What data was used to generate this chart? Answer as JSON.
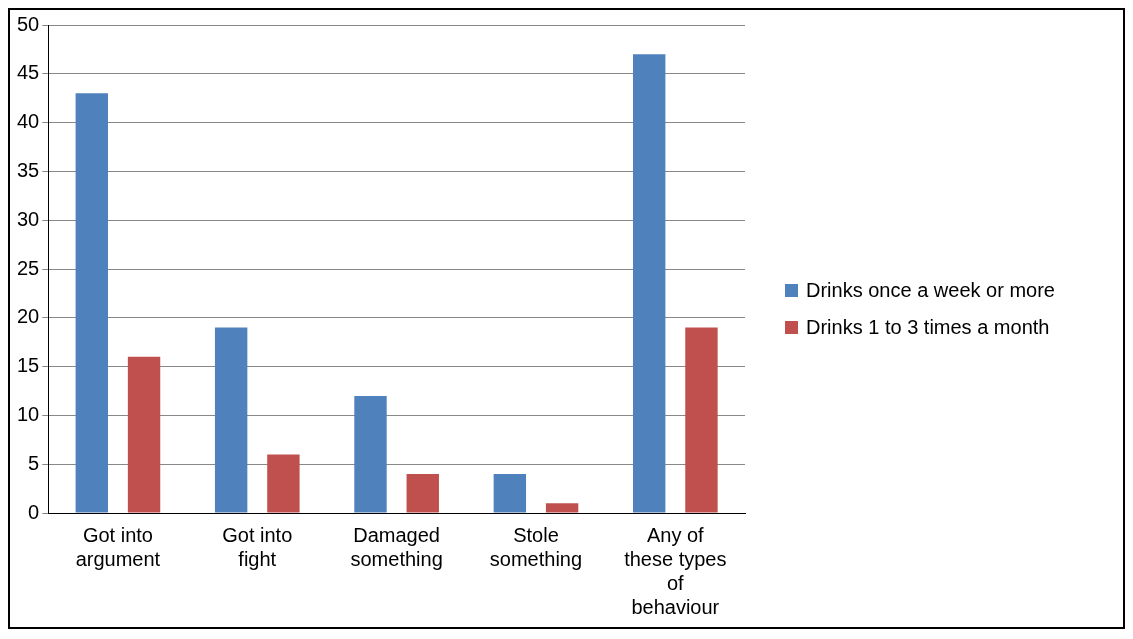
{
  "chart_data": {
    "type": "bar",
    "categories": [
      "Got into argument",
      "Got into fight",
      "Damaged something",
      "Stole something",
      "Any of these types of behaviour"
    ],
    "series": [
      {
        "name": "Drinks once a week or more",
        "color": "#4f81bd",
        "values": [
          43,
          19,
          12,
          4,
          47
        ]
      },
      {
        "name": "Drinks 1 to 3 times a month",
        "color": "#c0504d",
        "values": [
          16,
          6,
          4,
          1,
          19
        ]
      }
    ],
    "ylim": [
      0,
      50
    ],
    "yticks": [
      0,
      5,
      10,
      15,
      20,
      25,
      30,
      35,
      40,
      45,
      50
    ],
    "grid": "y",
    "legend": "right"
  }
}
